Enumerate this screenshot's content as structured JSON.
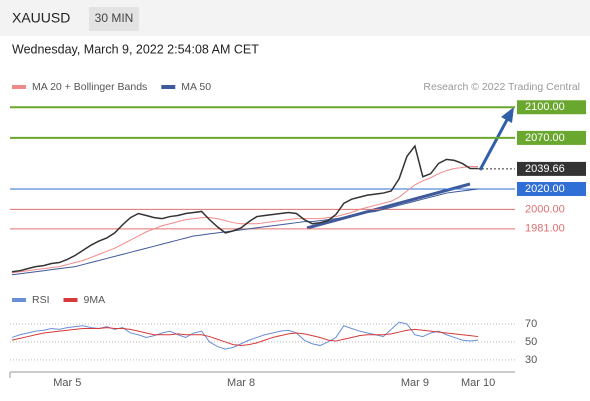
{
  "header": {
    "symbol": "XAUUSD",
    "interval": "30 MIN",
    "datetime": "Wednesday, March 9, 2022 2:54:08 AM CET",
    "credit": "Research © 2022 Trading Central"
  },
  "chart_data": [
    {
      "type": "line",
      "categories": [
        null,
        null,
        null,
        null,
        null,
        null,
        null,
        "Mar 5",
        null,
        null,
        null,
        null,
        null,
        null,
        null,
        null,
        null,
        null,
        null,
        null,
        null,
        null,
        null,
        null,
        null,
        null,
        null,
        null,
        null,
        "Mar 8",
        null,
        null,
        null,
        null,
        null,
        null,
        null,
        null,
        null,
        null,
        null,
        null,
        null,
        null,
        null,
        null,
        null,
        null,
        null,
        null,
        null,
        "Mar 9",
        null,
        null,
        null,
        null,
        null,
        null,
        null,
        "Mar 10"
      ],
      "values": [
        1939,
        1940,
        1942,
        1944,
        1945,
        1947,
        1948,
        1951,
        1955,
        1960,
        1965,
        1969,
        1972,
        1977,
        1985,
        1992,
        1996,
        1994,
        1992,
        1991,
        1993,
        1994,
        1996,
        1997,
        1998,
        1990,
        1983,
        1977,
        1979,
        1982,
        1988,
        1993,
        1994,
        1995,
        1996,
        1997,
        1996,
        1990,
        1986,
        1987,
        1989,
        1995,
        2006,
        2010,
        2012,
        2014,
        2015,
        2016,
        2018,
        2030,
        2052,
        2062,
        2032,
        2035,
        2045,
        2049,
        2048,
        2045,
        2040,
        2040
      ],
      "color": "#333333",
      "series": [
        {
          "name": "MA 20 + Bollinger Bands",
          "color": "#f08a8a",
          "values": [
            1938,
            1939,
            1940,
            1941,
            1942,
            1943,
            1944,
            1946,
            1948,
            1950,
            1953,
            1956,
            1959,
            1962,
            1966,
            1970,
            1974,
            1978,
            1981,
            1984,
            1986,
            1988,
            1990,
            1991,
            1992,
            1992,
            1991,
            1989,
            1987,
            1986,
            1986,
            1986,
            1987,
            1988,
            1989,
            1990,
            1991,
            1991,
            1991,
            1991,
            1992,
            1993,
            1995,
            1997,
            2000,
            2002,
            2004,
            2006,
            2008,
            2012,
            2018,
            2024,
            2028,
            2031,
            2035,
            2038,
            2040,
            2041,
            2042,
            2042
          ]
        },
        {
          "name": "MA 50",
          "color": "#3f5a9a",
          "values": [
            1936,
            1937,
            1938,
            1939,
            1940,
            1941,
            1942,
            1943,
            1944,
            1946,
            1948,
            1950,
            1952,
            1954,
            1956,
            1958,
            1960,
            1962,
            1964,
            1966,
            1968,
            1970,
            1972,
            1974,
            1975,
            1976,
            1977,
            1978,
            1979,
            1980,
            1981,
            1982,
            1983,
            1984,
            1985,
            1986,
            1987,
            1988,
            1988,
            1989,
            1990,
            1991,
            1992,
            1994,
            1995,
            1997,
            1998,
            2000,
            2002,
            2004,
            2006,
            2008,
            2010,
            2012,
            2014,
            2016,
            2017,
            2018,
            2019,
            2020
          ]
        }
      ],
      "levels": [
        {
          "value": 2100,
          "label": "2100.00",
          "color": "#6aa72f"
        },
        {
          "value": 2070,
          "label": "2070.00",
          "color": "#6aa72f"
        },
        {
          "value": 2039.66,
          "label": "2039.66",
          "color": "#333333"
        },
        {
          "value": 2020,
          "label": "2020.00",
          "color": "#2f6fd6"
        },
        {
          "value": 2000,
          "label": "2000.00",
          "color": "#e07070"
        },
        {
          "value": 1981,
          "label": "1981.00",
          "color": "#e07070"
        }
      ],
      "ylim": [
        1926,
        2112
      ]
    },
    {
      "type": "line",
      "series": [
        {
          "name": "RSI",
          "color": "#6b8fd6",
          "values": [
            55,
            58,
            60,
            62,
            63,
            65,
            64,
            66,
            67,
            68,
            66,
            65,
            67,
            64,
            66,
            60,
            58,
            55,
            57,
            60,
            62,
            58,
            55,
            60,
            62,
            50,
            45,
            42,
            44,
            48,
            52,
            55,
            58,
            60,
            62,
            63,
            60,
            52,
            48,
            46,
            50,
            55,
            68,
            65,
            62,
            60,
            58,
            56,
            64,
            72,
            70,
            58,
            56,
            60,
            62,
            58,
            55,
            52,
            51,
            52
          ]
        },
        {
          "name": "9MA",
          "color": "#d63a3a",
          "values": [
            52,
            54,
            56,
            58,
            60,
            61,
            62,
            63,
            64,
            65,
            65,
            65,
            66,
            65,
            65,
            64,
            62,
            60,
            58,
            58,
            58,
            59,
            58,
            58,
            58,
            56,
            53,
            50,
            47,
            46,
            47,
            49,
            52,
            55,
            57,
            59,
            60,
            59,
            57,
            55,
            52,
            51,
            53,
            55,
            57,
            58,
            58,
            58,
            59,
            61,
            63,
            64,
            63,
            62,
            61,
            60,
            59,
            58,
            57,
            56
          ]
        }
      ],
      "ylim": [
        21,
        80
      ],
      "yticks": [
        70,
        50,
        30
      ]
    }
  ]
}
